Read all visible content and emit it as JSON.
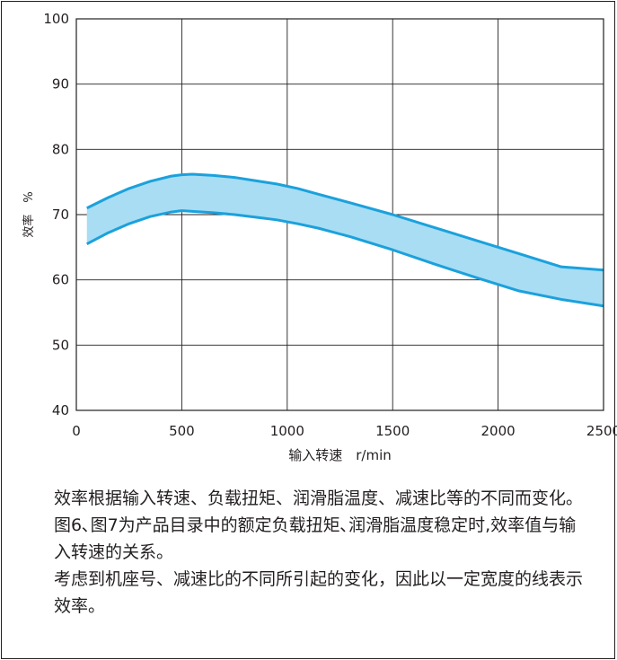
{
  "chart_data": {
    "type": "area",
    "xlabel": "输入转速　r/min",
    "ylabel": "效率　%",
    "xlim": [
      0,
      2500
    ],
    "ylim": [
      40,
      100
    ],
    "xticks": [
      0,
      500,
      1000,
      1500,
      2000,
      2500
    ],
    "yticks": [
      40,
      50,
      60,
      70,
      80,
      90,
      100
    ],
    "grid": true,
    "fill_color": "#a8ddf4",
    "line_color": "#1ba1dc",
    "band": {
      "x": [
        50,
        150,
        250,
        350,
        450,
        500,
        550,
        650,
        750,
        850,
        950,
        1050,
        1150,
        1300,
        1500,
        1700,
        1900,
        2100,
        2300,
        2500
      ],
      "upper": [
        71.0,
        72.6,
        74.0,
        75.1,
        75.9,
        76.1,
        76.2,
        76.0,
        75.7,
        75.2,
        74.7,
        74.0,
        73.1,
        71.8,
        70.0,
        68.0,
        66.0,
        64.0,
        62.0,
        61.5
      ],
      "lower": [
        65.5,
        67.2,
        68.6,
        69.7,
        70.4,
        70.6,
        70.5,
        70.3,
        70.0,
        69.6,
        69.2,
        68.6,
        67.9,
        66.6,
        64.6,
        62.4,
        60.3,
        58.3,
        57.0,
        56.0
      ]
    }
  },
  "notes": [
    "效率根据输入转速、负载扭矩、润滑脂温度、减速比等的不同而变化。",
    "图6､图7为产品目录中的额定负载扭矩､润滑脂温度稳定时,效率值与输入转速的关系。",
    "考虑到机座号、减速比的不同所引起的变化，因此以一定宽度的线表示效率。"
  ]
}
